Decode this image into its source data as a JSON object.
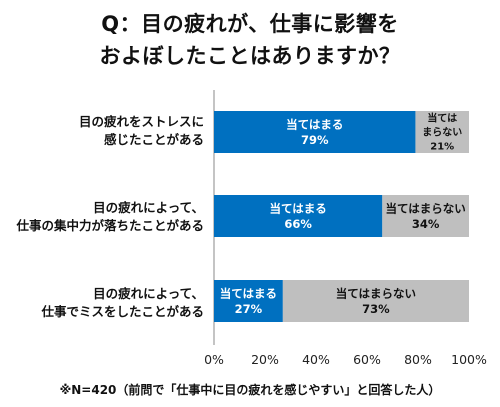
{
  "title": {
    "line1": "Q：目の疲れが、仕事に影響を",
    "line2": "およぼしたことはありますか？"
  },
  "colors": {
    "yes": "#0070C0",
    "no": "#BFBFBF",
    "axis": "#888888"
  },
  "chart_data": {
    "type": "bar",
    "orientation": "horizontal",
    "stacked": true,
    "xlim": [
      0,
      100
    ],
    "ticks": [
      "0%",
      "20%",
      "40%",
      "60%",
      "80%",
      "100%"
    ],
    "categories": [
      {
        "line1": "目の疲れをストレスに",
        "line2": "感じたことがある"
      },
      {
        "line1": "目の疲れによって、",
        "line2": "仕事の集中力が落ちたことがある"
      },
      {
        "line1": "目の疲れによって、",
        "line2": "仕事でミスをしたことがある"
      }
    ],
    "series": [
      {
        "name": "当てはまる",
        "values": [
          79,
          66,
          27
        ],
        "labels": [
          "79%",
          "66%",
          "27%"
        ]
      },
      {
        "name": "当てはまらない",
        "values": [
          21,
          34,
          73
        ],
        "labels": [
          "21%",
          "34%",
          "73%"
        ]
      }
    ]
  },
  "footnote": "※N=420（前問で「仕事中に目の疲れを感じやすい」と回答した人）"
}
